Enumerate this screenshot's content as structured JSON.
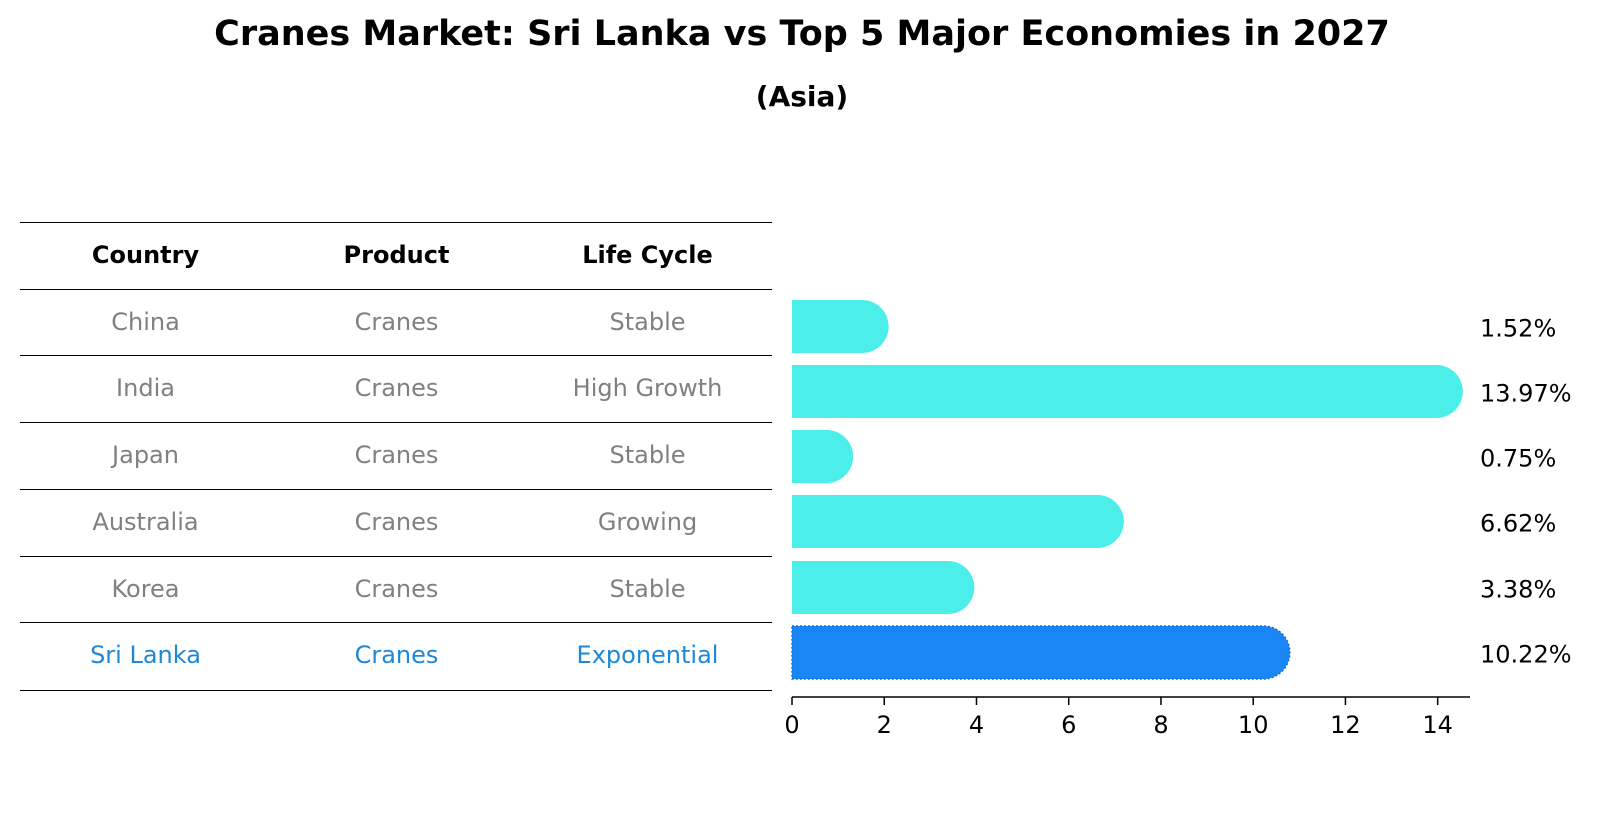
{
  "title": "Cranes Market: Sri Lanka vs Top 5 Major Economies in 2027",
  "subtitle": "(Asia)",
  "table": {
    "headers": [
      "Country",
      "Product",
      "Life Cycle"
    ],
    "rows": [
      [
        "China",
        "Cranes",
        "Stable"
      ],
      [
        "India",
        "Cranes",
        "High Growth"
      ],
      [
        "Japan",
        "Cranes",
        "Stable"
      ],
      [
        "Australia",
        "Cranes",
        "Growing"
      ],
      [
        "Korea",
        "Cranes",
        "Stable"
      ],
      [
        "Sri Lanka",
        "Cranes",
        "Exponential"
      ]
    ],
    "highlight_row": 5
  },
  "colors": {
    "bar": "#4beee8",
    "highlight": "#1a86f5",
    "highlight_text": "#1e88d8",
    "muted_text": "#808080"
  },
  "chart_data": {
    "type": "bar",
    "orientation": "horizontal",
    "categories": [
      "China",
      "India",
      "Japan",
      "Australia",
      "Korea",
      "Sri Lanka"
    ],
    "values": [
      1.52,
      13.97,
      0.75,
      6.62,
      3.38,
      10.22
    ],
    "labels": [
      "1.52%",
      "13.97%",
      "0.75%",
      "6.62%",
      "3.38%",
      "10.22%"
    ],
    "highlight": "Sri Lanka",
    "xlim": [
      0,
      14.7
    ],
    "xticks": [
      0,
      2,
      4,
      6,
      8,
      10,
      12,
      14
    ],
    "title": "Cranes Market: Sri Lanka vs Top 5 Major Economies in 2027",
    "subtitle": "(Asia)",
    "xlabel": "",
    "ylabel": ""
  }
}
